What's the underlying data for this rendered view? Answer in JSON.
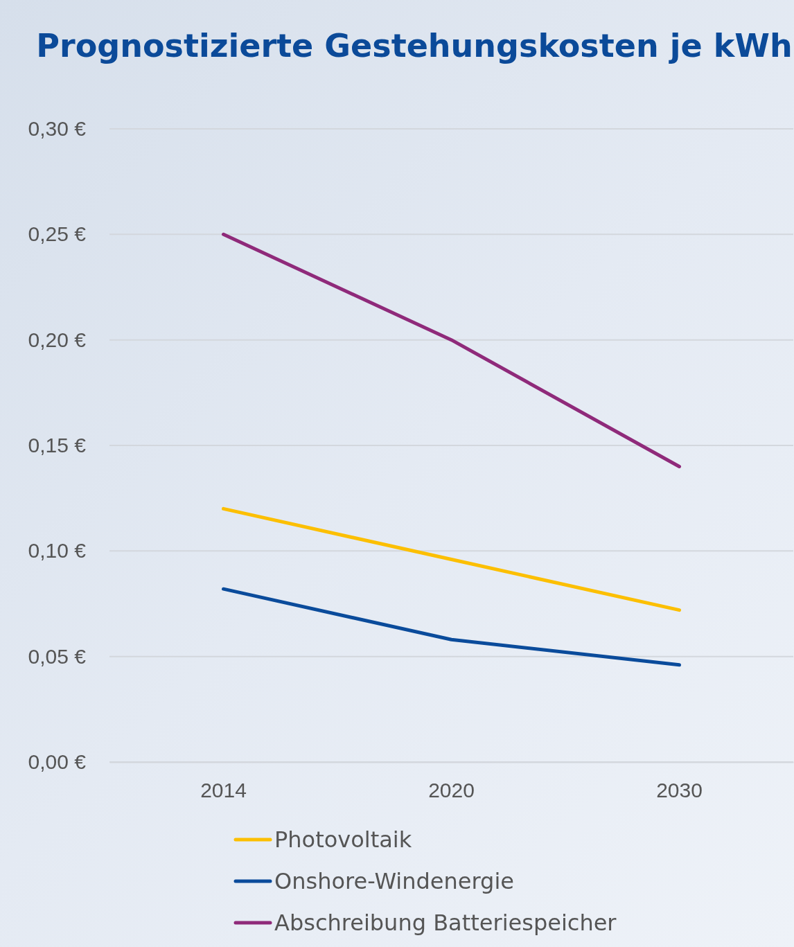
{
  "chart_data": {
    "type": "line",
    "title": "Prognostizierte Gestehungskosten je kWh",
    "categories": [
      "2014",
      "2020",
      "2030"
    ],
    "series": [
      {
        "name": "Photovoltaik",
        "color": "#fcbf00",
        "values": [
          0.12,
          0.096,
          0.072
        ]
      },
      {
        "name": "Onshore-Windenergie",
        "color": "#0a4b9b",
        "values": [
          0.082,
          0.058,
          0.046
        ]
      },
      {
        "name": "Abschreibung Batteriespeicher",
        "color": "#8f2a7a",
        "values": [
          0.25,
          0.2,
          0.14
        ]
      }
    ],
    "ylim": [
      0,
      0.3
    ],
    "yticks": [
      {
        "value": 0,
        "label": "0,00 €"
      },
      {
        "value": 0.05,
        "label": "0,05 €"
      },
      {
        "value": 0.1,
        "label": "0,10 €"
      },
      {
        "value": 0.15,
        "label": "0,15 €"
      },
      {
        "value": 0.2,
        "label": "0,20 €"
      },
      {
        "value": 0.25,
        "label": "0,25 €"
      },
      {
        "value": 0.3,
        "label": "0,30 €"
      }
    ],
    "grid": "y",
    "legend": "bottom",
    "marker": "none",
    "line_style": "solid"
  }
}
